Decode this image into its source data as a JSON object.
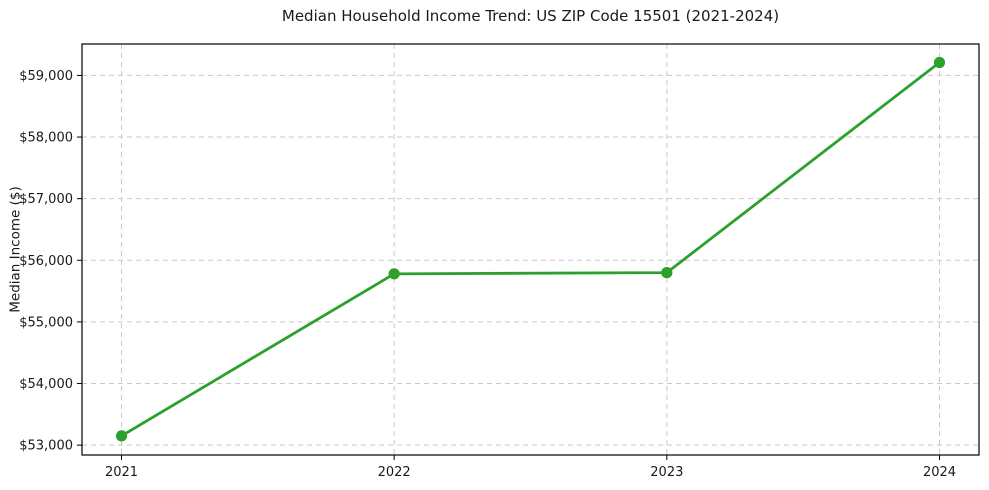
{
  "figure": {
    "title": "Median Household Income Trend: US ZIP Code 15501 (2021-2024)"
  },
  "chart_data": {
    "type": "line",
    "title": "Median Household Income Trend: US ZIP Code 15501 (2021-2024)",
    "xlabel": "",
    "ylabel": "Median Income ($)",
    "categories": [
      "2021",
      "2022",
      "2023",
      "2024"
    ],
    "series": [
      {
        "name": "Median Household Income",
        "values": [
          53150,
          55780,
          55800,
          59210
        ],
        "color": "#2ca02c",
        "marker": "circle"
      }
    ],
    "y_ticks": [
      53000,
      54000,
      55000,
      56000,
      57000,
      58000,
      59000
    ],
    "y_tick_labels": [
      "$53,000",
      "$54,000",
      "$55,000",
      "$56,000",
      "$57,000",
      "$58,000",
      "$59,000"
    ],
    "ylim": [
      52840,
      59510
    ],
    "grid": "both",
    "grid_style": "dashed",
    "legend": "none",
    "colors": {
      "line": "#2ca02c",
      "grid": "#c9c9c9",
      "axis": "#000000",
      "text": "#1a1a1a",
      "background": "#ffffff"
    }
  }
}
